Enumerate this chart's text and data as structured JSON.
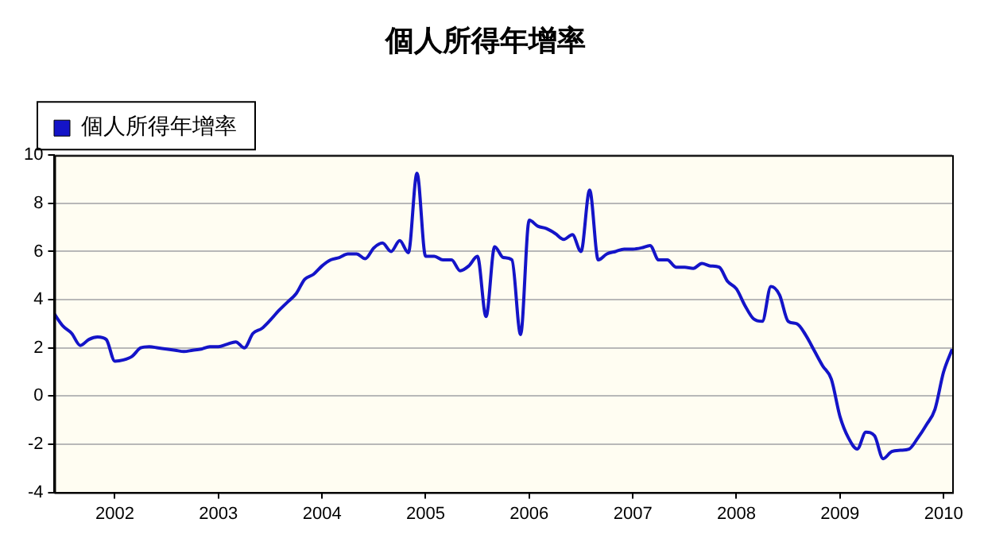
{
  "chart_data": {
    "type": "line",
    "title": "個人所得年增率",
    "x": [
      "2001-06",
      "2001-07",
      "2001-08",
      "2001-09",
      "2001-10",
      "2001-11",
      "2001-12",
      "2002-01",
      "2002-02",
      "2002-03",
      "2002-04",
      "2002-05",
      "2002-06",
      "2002-07",
      "2002-08",
      "2002-09",
      "2002-10",
      "2002-11",
      "2002-12",
      "2003-01",
      "2003-02",
      "2003-03",
      "2003-04",
      "2003-05",
      "2003-06",
      "2003-07",
      "2003-08",
      "2003-09",
      "2003-10",
      "2003-11",
      "2003-12",
      "2004-01",
      "2004-02",
      "2004-03",
      "2004-04",
      "2004-05",
      "2004-06",
      "2004-07",
      "2004-08",
      "2004-09",
      "2004-10",
      "2004-11",
      "2004-12",
      "2005-01",
      "2005-02",
      "2005-03",
      "2005-04",
      "2005-05",
      "2005-06",
      "2005-07",
      "2005-08",
      "2005-09",
      "2005-10",
      "2005-11",
      "2005-12",
      "2006-01",
      "2006-02",
      "2006-03",
      "2006-04",
      "2006-05",
      "2006-06",
      "2006-07",
      "2006-08",
      "2006-09",
      "2006-10",
      "2006-11",
      "2006-12",
      "2007-01",
      "2007-02",
      "2007-03",
      "2007-04",
      "2007-05",
      "2007-06",
      "2007-07",
      "2007-08",
      "2007-09",
      "2007-10",
      "2007-11",
      "2007-12",
      "2008-01",
      "2008-02",
      "2008-03",
      "2008-04",
      "2008-05",
      "2008-06",
      "2008-07",
      "2008-08",
      "2008-09",
      "2008-10",
      "2008-11",
      "2008-12",
      "2009-01",
      "2009-02",
      "2009-03",
      "2009-04",
      "2009-05",
      "2009-06",
      "2009-07",
      "2009-08",
      "2009-09",
      "2009-10",
      "2009-11",
      "2009-12",
      "2010-01",
      "2010-02"
    ],
    "series": [
      {
        "name": "個人所得年增率",
        "color": "#1414c8",
        "values": [
          3.4,
          2.9,
          2.6,
          2.1,
          2.35,
          2.45,
          2.35,
          1.45,
          1.5,
          1.65,
          2.0,
          2.05,
          2.0,
          1.95,
          1.9,
          1.85,
          1.9,
          1.95,
          2.05,
          2.05,
          2.15,
          2.25,
          2.0,
          2.6,
          2.8,
          3.15,
          3.55,
          3.9,
          4.25,
          4.85,
          5.05,
          5.4,
          5.65,
          5.75,
          5.9,
          5.9,
          5.7,
          6.15,
          6.35,
          6.0,
          6.45,
          5.95,
          9.25,
          5.8,
          5.8,
          5.65,
          5.65,
          5.2,
          5.4,
          5.8,
          3.3,
          6.2,
          5.75,
          5.65,
          2.55,
          7.3,
          7.05,
          6.95,
          6.75,
          6.5,
          6.7,
          6.0,
          8.55,
          5.65,
          5.9,
          6.0,
          6.1,
          6.1,
          6.15,
          6.25,
          5.65,
          5.65,
          5.35,
          5.35,
          5.3,
          5.5,
          5.4,
          5.35,
          4.75,
          4.45,
          3.75,
          3.2,
          3.1,
          4.55,
          4.2,
          3.1,
          3.0,
          2.55,
          1.9,
          1.25,
          0.7,
          -0.85,
          -1.75,
          -2.2,
          -1.5,
          -1.65,
          -2.6,
          -2.3,
          -2.25,
          -2.2,
          -1.75,
          -1.2,
          -0.55,
          1.0,
          1.95
        ]
      }
    ],
    "xlim": [
      "2001-06",
      "2010-02"
    ],
    "xticks": [
      "2002",
      "2003",
      "2004",
      "2005",
      "2006",
      "2007",
      "2008",
      "2009",
      "2010"
    ],
    "ylim": [
      -4,
      10
    ],
    "yticks": [
      -4,
      -2,
      0,
      2,
      4,
      6,
      8,
      10
    ],
    "grid": "y",
    "legend": "top left",
    "marker": "none",
    "line_style": "solid"
  }
}
